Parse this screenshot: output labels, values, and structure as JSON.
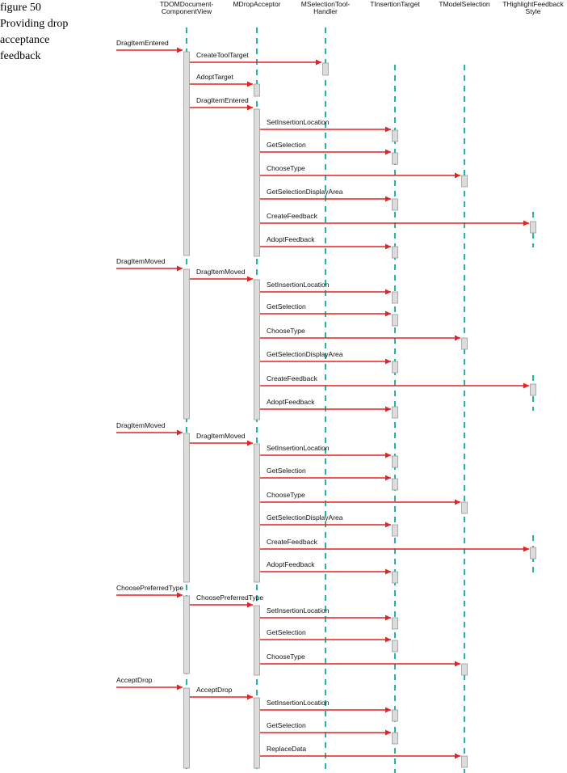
{
  "caption": {
    "number": "figure 50",
    "title_lines": [
      "Providing drop",
      "acceptance",
      "feedback"
    ]
  },
  "colors": {
    "lifeline": "#1fb8a8",
    "arrow": "#e8201f",
    "activation_fill": "#dcdcdc",
    "activation_stroke": "#9a9a9a",
    "text": "#111111"
  },
  "participants": [
    {
      "id": "view",
      "lines": [
        "TDOMDocument-",
        "ComponentView"
      ]
    },
    {
      "id": "acceptor",
      "lines": [
        "MDropAcceptor"
      ]
    },
    {
      "id": "handler",
      "lines": [
        "MSelectionTool-",
        "Handler"
      ]
    },
    {
      "id": "target",
      "lines": [
        "TInsertionTarget"
      ]
    },
    {
      "id": "model",
      "lines": [
        "TModelSelection"
      ]
    },
    {
      "id": "feedback",
      "lines": [
        "THighlightFeedback",
        "Style"
      ]
    }
  ],
  "messages": [
    {
      "from": "actor",
      "to": "view",
      "label": "DragItemEntered"
    },
    {
      "from": "view",
      "to": "handler",
      "label": "CreateToolTarget"
    },
    {
      "from": "view",
      "to": "acceptor",
      "label": "AdoptTarget"
    },
    {
      "from": "view",
      "to": "acceptor",
      "label": "DragItemEntered"
    },
    {
      "from": "acceptor",
      "to": "target",
      "label": "SetInsertionLocation"
    },
    {
      "from": "acceptor",
      "to": "target",
      "label": "GetSelection"
    },
    {
      "from": "acceptor",
      "to": "model",
      "label": "ChooseType"
    },
    {
      "from": "acceptor",
      "to": "target",
      "label": "GetSelectionDisplayArea"
    },
    {
      "from": "acceptor",
      "to": "feedback",
      "label": "CreateFeedback"
    },
    {
      "from": "acceptor",
      "to": "target",
      "label": "AdoptFeedback"
    },
    {
      "from": "actor",
      "to": "view",
      "label": "DragItemMoved"
    },
    {
      "from": "view",
      "to": "acceptor",
      "label": "DragItemMoved"
    },
    {
      "from": "acceptor",
      "to": "target",
      "label": "SetInsertionLocation"
    },
    {
      "from": "acceptor",
      "to": "target",
      "label": "GetSelection"
    },
    {
      "from": "acceptor",
      "to": "model",
      "label": "ChooseType"
    },
    {
      "from": "acceptor",
      "to": "target",
      "label": "GetSelectionDisplayArea"
    },
    {
      "from": "acceptor",
      "to": "feedback",
      "label": "CreateFeedback"
    },
    {
      "from": "acceptor",
      "to": "target",
      "label": "AdoptFeedback"
    },
    {
      "from": "actor",
      "to": "view",
      "label": "DragItemMoved"
    },
    {
      "from": "view",
      "to": "acceptor",
      "label": "DragItemMoved"
    },
    {
      "from": "acceptor",
      "to": "target",
      "label": "SetInsertionLocation"
    },
    {
      "from": "acceptor",
      "to": "target",
      "label": "GetSelection"
    },
    {
      "from": "acceptor",
      "to": "model",
      "label": "ChooseType"
    },
    {
      "from": "acceptor",
      "to": "target",
      "label": "GetSelectionDisplayArea"
    },
    {
      "from": "acceptor",
      "to": "feedback",
      "label": "CreateFeedback"
    },
    {
      "from": "acceptor",
      "to": "target",
      "label": "AdoptFeedback"
    },
    {
      "from": "actor",
      "to": "view",
      "label": "ChoosePreferredType"
    },
    {
      "from": "view",
      "to": "acceptor",
      "label": "ChoosePreferredType"
    },
    {
      "from": "acceptor",
      "to": "target",
      "label": "SetInsertionLocation"
    },
    {
      "from": "acceptor",
      "to": "target",
      "label": "GetSelection"
    },
    {
      "from": "acceptor",
      "to": "model",
      "label": "ChooseType"
    },
    {
      "from": "actor",
      "to": "view",
      "label": "AcceptDrop"
    },
    {
      "from": "view",
      "to": "acceptor",
      "label": "AcceptDrop"
    },
    {
      "from": "acceptor",
      "to": "target",
      "label": "SetInsertionLocation"
    },
    {
      "from": "acceptor",
      "to": "target",
      "label": "GetSelection"
    },
    {
      "from": "acceptor",
      "to": "model",
      "label": "ReplaceData"
    }
  ]
}
